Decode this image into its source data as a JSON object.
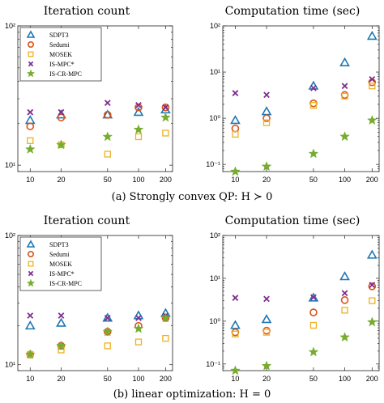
{
  "colors": {
    "SDPT3": "#1f77b4",
    "Sedumi": "#d95319",
    "MOSEK": "#edb120",
    "IS-MPC*": "#7e2f8e",
    "IS-CR-MPC": "#77ac30"
  },
  "captions": {
    "top": "(a) Strongly convex QP: H ≻ 0",
    "bottom": "(b) linear optimization: H = 0"
  },
  "chart_data": [
    {
      "type": "scatter",
      "title": "Iteration count",
      "x_ticks": [
        "10",
        "20",
        "50",
        "100",
        "200"
      ],
      "y_scale": "log",
      "ylim": [
        9,
        100
      ],
      "y_tick_labels": [
        "10¹",
        "10²"
      ],
      "legend": "top-left",
      "series": [
        {
          "name": "SDPT3",
          "values": [
            21,
            23,
            23,
            24,
            25
          ]
        },
        {
          "name": "Sedumi",
          "values": [
            19,
            22,
            23,
            26,
            26
          ]
        },
        {
          "name": "MOSEK",
          "values": [
            15,
            14,
            12,
            16,
            17
          ]
        },
        {
          "name": "IS-MPC*",
          "values": [
            24,
            24,
            28,
            27,
            26
          ]
        },
        {
          "name": "IS-CR-MPC",
          "values": [
            13,
            14,
            16,
            18,
            22
          ]
        }
      ]
    },
    {
      "type": "scatter",
      "title": "Computation time (sec)",
      "x_ticks": [
        "10",
        "20",
        "50",
        "100",
        "200"
      ],
      "y_scale": "log",
      "ylim": [
        0.07,
        100
      ],
      "y_tick_labels": [
        "10⁻¹",
        "10⁰",
        "10¹",
        "10²"
      ],
      "series": [
        {
          "name": "SDPT3",
          "values": [
            0.9,
            1.4,
            5,
            16,
            60
          ]
        },
        {
          "name": "Sedumi",
          "values": [
            0.6,
            1.0,
            2.1,
            3.2,
            6
          ]
        },
        {
          "name": "MOSEK",
          "values": [
            0.45,
            0.8,
            1.9,
            3.0,
            5
          ]
        },
        {
          "name": "IS-MPC*",
          "values": [
            3.5,
            3.2,
            4.5,
            5,
            7
          ]
        },
        {
          "name": "IS-CR-MPC",
          "values": [
            0.07,
            0.09,
            0.17,
            0.4,
            0.9
          ]
        }
      ]
    },
    {
      "type": "scatter",
      "title": "Iteration count",
      "x_ticks": [
        "10",
        "20",
        "50",
        "100",
        "200"
      ],
      "y_scale": "log",
      "ylim": [
        9,
        100
      ],
      "y_tick_labels": [
        "10¹",
        "10²"
      ],
      "legend": "top-left",
      "series": [
        {
          "name": "SDPT3",
          "values": [
            20,
            21,
            23,
            24,
            25
          ]
        },
        {
          "name": "Sedumi",
          "values": [
            12,
            14,
            18,
            20,
            23
          ]
        },
        {
          "name": "MOSEK",
          "values": [
            12,
            13,
            14,
            15,
            16
          ]
        },
        {
          "name": "IS-MPC*",
          "values": [
            24,
            24,
            23,
            23,
            24
          ]
        },
        {
          "name": "IS-CR-MPC",
          "values": [
            12,
            14,
            18,
            19,
            23
          ]
        }
      ]
    },
    {
      "type": "scatter",
      "title": "Computation time (sec)",
      "x_ticks": [
        "10",
        "20",
        "50",
        "100",
        "200"
      ],
      "y_scale": "log",
      "ylim": [
        0.07,
        100
      ],
      "y_tick_labels": [
        "10⁻¹",
        "10⁰",
        "10¹",
        "10²"
      ],
      "series": [
        {
          "name": "SDPT3",
          "values": [
            0.8,
            1.1,
            3.5,
            11,
            35
          ]
        },
        {
          "name": "Sedumi",
          "values": [
            0.55,
            0.6,
            1.6,
            3.1,
            6.5
          ]
        },
        {
          "name": "MOSEK",
          "values": [
            0.5,
            0.55,
            0.8,
            1.8,
            3.0
          ]
        },
        {
          "name": "IS-MPC*",
          "values": [
            3.5,
            3.3,
            3.6,
            4.5,
            7
          ]
        },
        {
          "name": "IS-CR-MPC",
          "values": [
            0.07,
            0.09,
            0.19,
            0.42,
            0.95
          ]
        }
      ]
    }
  ]
}
